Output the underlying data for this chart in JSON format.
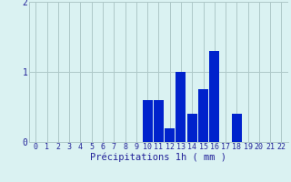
{
  "hours": [
    0,
    1,
    2,
    3,
    4,
    5,
    6,
    7,
    8,
    9,
    10,
    11,
    12,
    13,
    14,
    15,
    16,
    17,
    18,
    19,
    20,
    21,
    22
  ],
  "values": [
    0,
    0,
    0,
    0,
    0,
    0,
    0,
    0,
    0,
    0,
    0.6,
    0.6,
    0.2,
    1.0,
    0.4,
    0.75,
    1.3,
    0,
    0.4,
    0,
    0,
    0,
    0
  ],
  "bar_color": "#0022cc",
  "background_color": "#daf2f2",
  "grid_color": "#aec8c8",
  "axis_color": "#222299",
  "xlabel": "Précipitations 1h ( mm )",
  "xlabel_fontsize": 7.5,
  "tick_fontsize": 6,
  "ylim": [
    0,
    2
  ],
  "yticks": [
    0,
    1,
    2
  ],
  "xlim": [
    -0.6,
    22.6
  ]
}
